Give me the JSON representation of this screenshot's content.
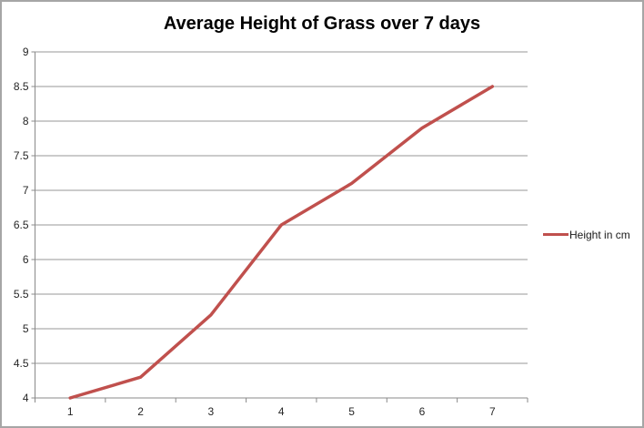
{
  "chart": {
    "colors": {
      "series": "#c0504d",
      "gridline": "#979797",
      "axis": "#8a8a8a",
      "border": "#a6a6a6",
      "background": "#ffffff",
      "label_text": "#262626"
    }
  },
  "chart_data": {
    "type": "line",
    "title": "Average Height of Grass over 7 days",
    "categories": [
      "1",
      "2",
      "3",
      "4",
      "5",
      "6",
      "7"
    ],
    "series": [
      {
        "name": "Height in cm",
        "color": "#c0504d",
        "values": [
          4,
          4.3,
          5.2,
          6.5,
          7.1,
          7.9,
          8.5
        ]
      }
    ],
    "xlabel": "",
    "ylabel": "",
    "ylim": [
      4,
      9
    ],
    "ytick_step": 0.5,
    "grid": true,
    "legend_position": "right",
    "markers": false
  }
}
